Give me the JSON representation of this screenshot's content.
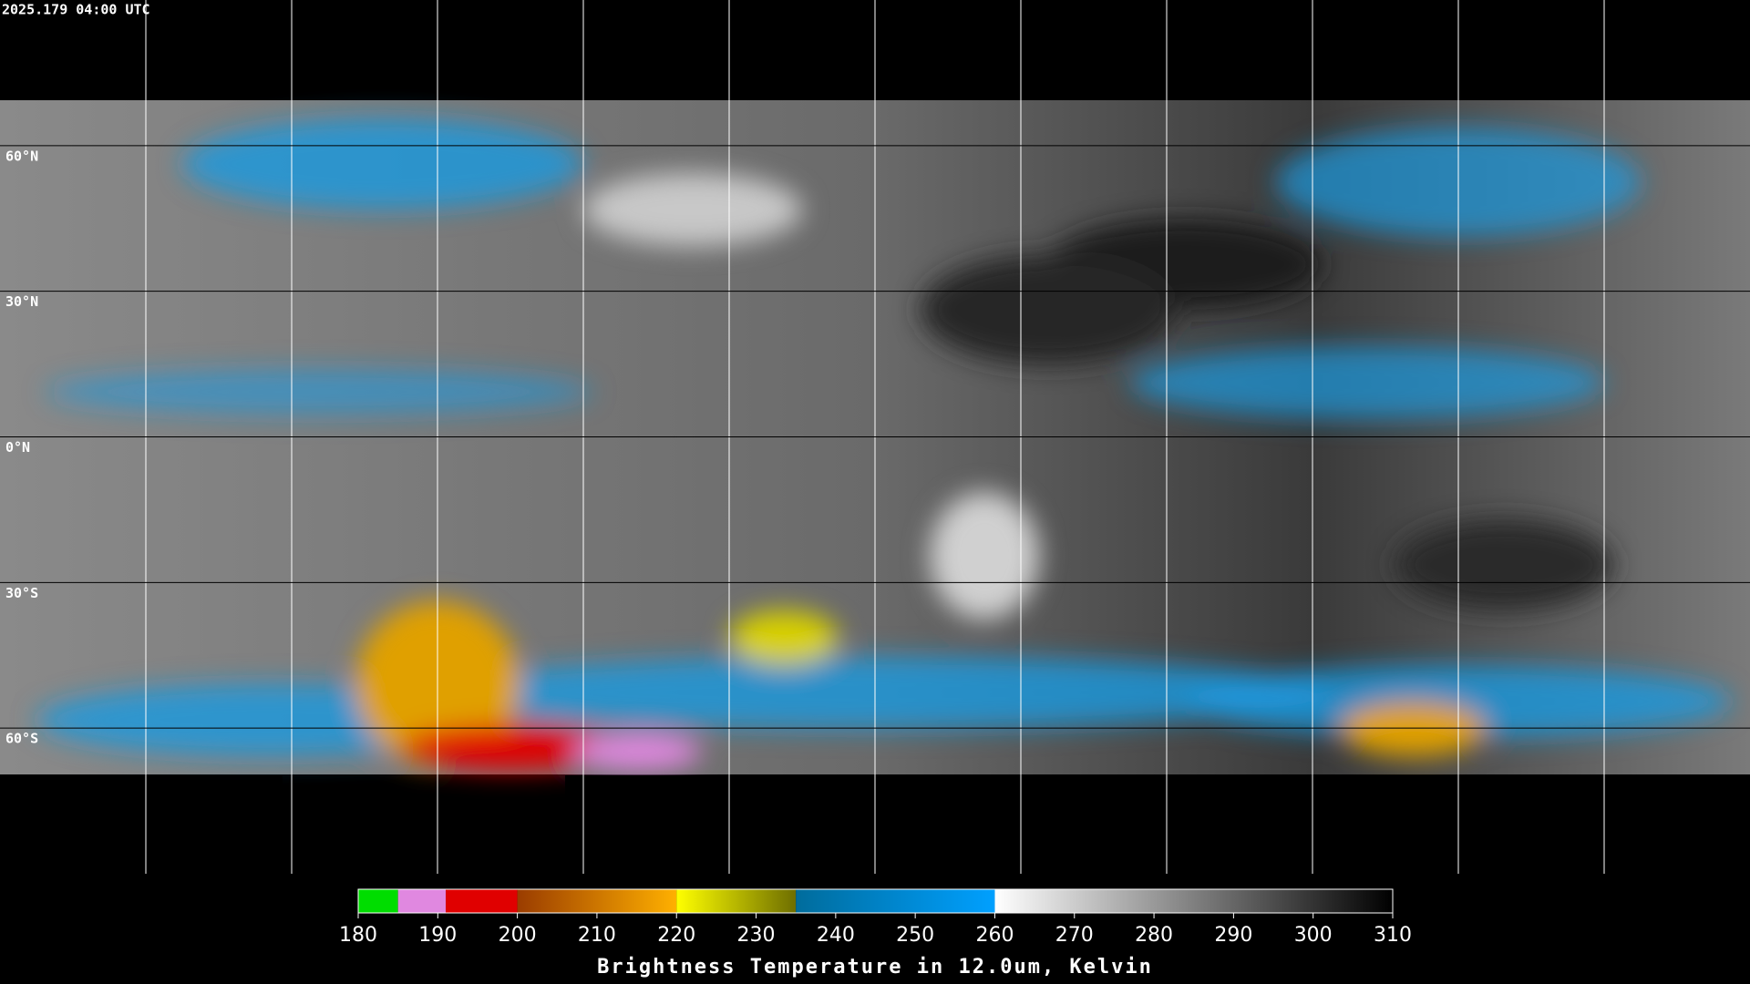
{
  "map": {
    "timestamp": "2025.179 04:00 UTC",
    "lat_labels": [
      {
        "value": 60,
        "label": "60°N"
      },
      {
        "value": 30,
        "label": "30°N"
      },
      {
        "value": 0,
        "label": "0°N"
      },
      {
        "value": -30,
        "label": "30°S"
      },
      {
        "value": -60,
        "label": "60°S"
      }
    ],
    "colorbar": {
      "title": "Brightness Temperature in 12.0um, Kelvin",
      "lim": [
        180,
        310
      ],
      "ticks": [
        180,
        190,
        200,
        210,
        220,
        230,
        240,
        250,
        260,
        270,
        280,
        290,
        300,
        310
      ],
      "segments": [
        {
          "start": 180,
          "end": 185,
          "color_start": "#00dd00",
          "color_end": "#00dd00"
        },
        {
          "start": 185,
          "end": 191,
          "color_start": "#e088e0",
          "color_end": "#e088e0"
        },
        {
          "start": 191,
          "end": 200,
          "color_start": "#e00000",
          "color_end": "#e00000"
        },
        {
          "start": 200,
          "end": 220,
          "color_start": "#9a3c00",
          "color_end": "#ffb000"
        },
        {
          "start": 220,
          "end": 235,
          "color_start": "#ffff00",
          "color_end": "#6e6e00"
        },
        {
          "start": 235,
          "end": 260,
          "color_start": "#006c9c",
          "color_end": "#00a0ff"
        },
        {
          "start": 260,
          "end": 310,
          "color_start": "#ffffff",
          "color_end": "#000000"
        }
      ]
    }
  }
}
